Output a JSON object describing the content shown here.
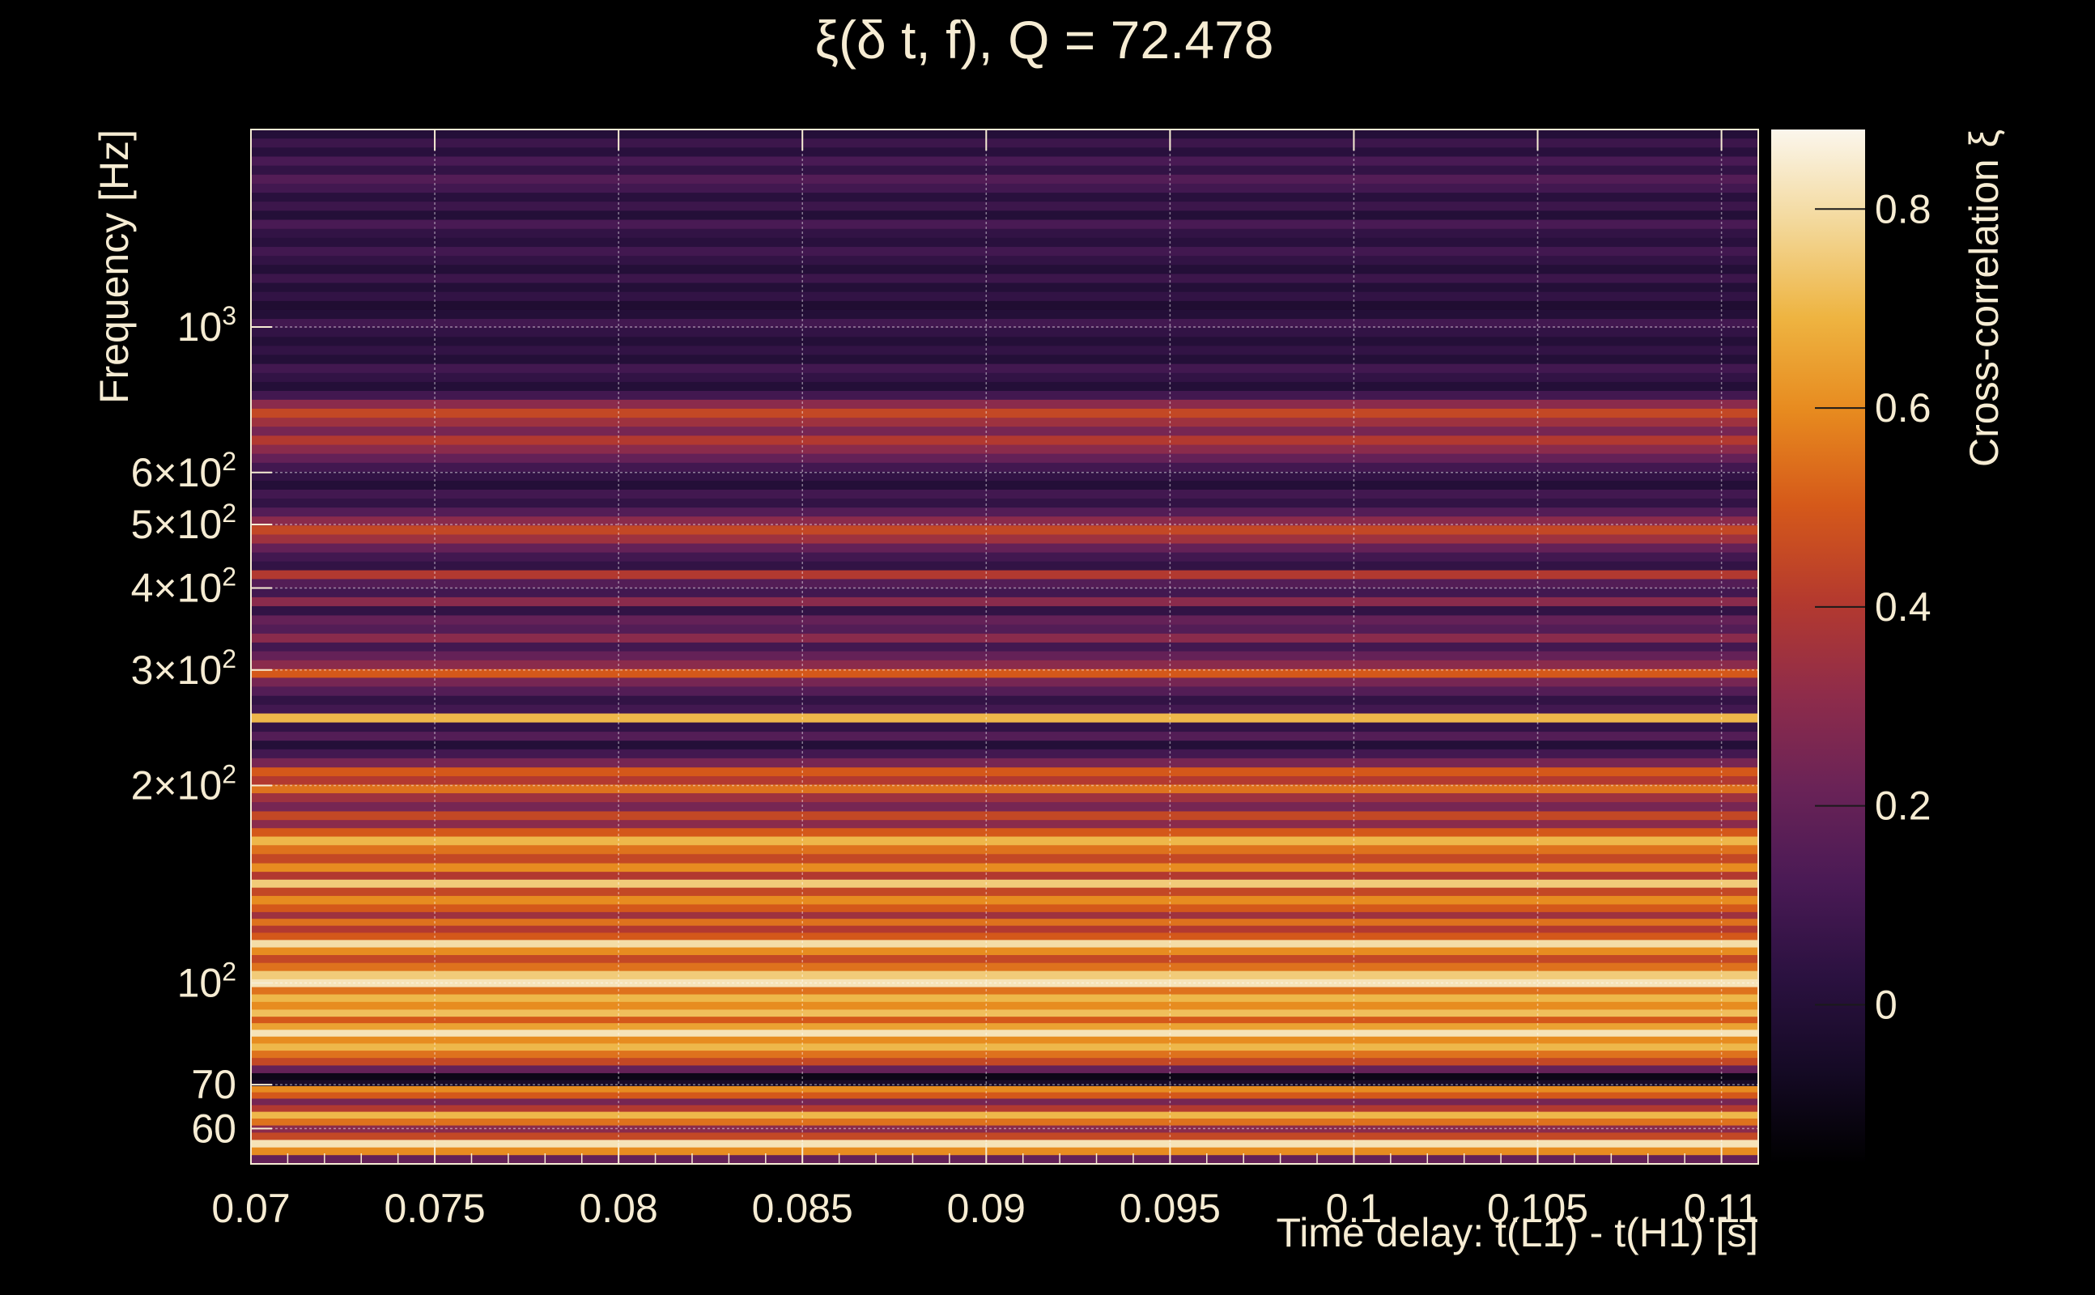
{
  "chart_data": {
    "type": "heatmap",
    "title": "ξ(δ t, f), Q = 72.478",
    "xlabel": "Time delay: t(L1) - t(H1) [s]",
    "ylabel": "Frequency [Hz]",
    "colorbar_label": "Cross-correlation ξ",
    "xlim": [
      0.07,
      0.111
    ],
    "ylim": [
      53,
      2000
    ],
    "yscale": "log",
    "x_ticks": [
      {
        "value": 0.07,
        "label": "0.07"
      },
      {
        "value": 0.075,
        "label": "0.075"
      },
      {
        "value": 0.08,
        "label": "0.08"
      },
      {
        "value": 0.085,
        "label": "0.085"
      },
      {
        "value": 0.09,
        "label": "0.09"
      },
      {
        "value": 0.095,
        "label": "0.095"
      },
      {
        "value": 0.1,
        "label": "0.1"
      },
      {
        "value": 0.105,
        "label": "0.105"
      },
      {
        "value": 0.11,
        "label": "0.11"
      }
    ],
    "y_ticks": [
      {
        "value": 60,
        "label": "60"
      },
      {
        "value": 70,
        "label": "70"
      },
      {
        "value": 100,
        "mantissa": "10",
        "exponent": "2"
      },
      {
        "value": 200,
        "mantissa": "2×10",
        "exponent": "2"
      },
      {
        "value": 300,
        "mantissa": "3×10",
        "exponent": "2"
      },
      {
        "value": 400,
        "mantissa": "4×10",
        "exponent": "2"
      },
      {
        "value": 500,
        "mantissa": "5×10",
        "exponent": "2"
      },
      {
        "value": 600,
        "mantissa": "6×10",
        "exponent": "2"
      },
      {
        "value": 1000,
        "mantissa": "10",
        "exponent": "3"
      }
    ],
    "colorbar": {
      "range": [
        -0.16,
        0.88
      ],
      "ticks": [
        {
          "value": 0,
          "label": "0"
        },
        {
          "value": 0.2,
          "label": "0.2"
        },
        {
          "value": 0.4,
          "label": "0.4"
        },
        {
          "value": 0.6,
          "label": "0.6"
        },
        {
          "value": 0.8,
          "label": "0.8"
        }
      ],
      "colormap": [
        "#000004",
        "#1b0c41",
        "#4a0c6b",
        "#781c6d",
        "#a52c60",
        "#cf4446",
        "#ed6925",
        "#fb9b06",
        "#f7d13d",
        "#fcffa4"
      ],
      "display_colormap": [
        "#000000",
        "#150a25",
        "#2b1140",
        "#4a1a55",
        "#6a2357",
        "#8f2c4a",
        "#b53a2e",
        "#d5591a",
        "#e78a1f",
        "#eeb441",
        "#f3d89a",
        "#fbf6ec"
      ]
    },
    "rows": [
      {
        "f": 54,
        "v": 0.2
      },
      {
        "f": 55.5,
        "v": 0.6
      },
      {
        "f": 57,
        "v": 0.82
      },
      {
        "f": 58.5,
        "v": 0.45
      },
      {
        "f": 60,
        "v": 0.3
      },
      {
        "f": 61.5,
        "v": 0.55
      },
      {
        "f": 63,
        "v": 0.7
      },
      {
        "f": 64.5,
        "v": 0.4
      },
      {
        "f": 66,
        "v": 0.25
      },
      {
        "f": 67.5,
        "v": 0.5
      },
      {
        "f": 69,
        "v": 0.6
      },
      {
        "f": 70.5,
        "v": -0.05
      },
      {
        "f": 72,
        "v": -0.1
      },
      {
        "f": 74,
        "v": 0.2
      },
      {
        "f": 76,
        "v": 0.45
      },
      {
        "f": 78,
        "v": 0.55
      },
      {
        "f": 80,
        "v": 0.7
      },
      {
        "f": 82,
        "v": 0.6
      },
      {
        "f": 84,
        "v": 0.82
      },
      {
        "f": 86,
        "v": 0.65
      },
      {
        "f": 88,
        "v": 0.5
      },
      {
        "f": 90,
        "v": 0.72
      },
      {
        "f": 92.5,
        "v": 0.6
      },
      {
        "f": 95,
        "v": 0.7
      },
      {
        "f": 97.5,
        "v": 0.55
      },
      {
        "f": 100,
        "v": 0.82
      },
      {
        "f": 103,
        "v": 0.75
      },
      {
        "f": 106,
        "v": 0.55
      },
      {
        "f": 109,
        "v": 0.45
      },
      {
        "f": 112,
        "v": 0.6
      },
      {
        "f": 115,
        "v": 0.8
      },
      {
        "f": 118,
        "v": 0.5
      },
      {
        "f": 121,
        "v": 0.4
      },
      {
        "f": 124,
        "v": 0.55
      },
      {
        "f": 127,
        "v": 0.35
      },
      {
        "f": 130,
        "v": 0.5
      },
      {
        "f": 134,
        "v": 0.6
      },
      {
        "f": 138,
        "v": 0.45
      },
      {
        "f": 142,
        "v": 0.75
      },
      {
        "f": 146,
        "v": 0.4
      },
      {
        "f": 150,
        "v": 0.6
      },
      {
        "f": 155,
        "v": 0.45
      },
      {
        "f": 160,
        "v": 0.55
      },
      {
        "f": 165,
        "v": 0.7
      },
      {
        "f": 170,
        "v": 0.5
      },
      {
        "f": 175,
        "v": 0.3
      },
      {
        "f": 180,
        "v": 0.45
      },
      {
        "f": 186,
        "v": 0.25
      },
      {
        "f": 192,
        "v": 0.35
      },
      {
        "f": 198,
        "v": 0.55
      },
      {
        "f": 204,
        "v": 0.4
      },
      {
        "f": 210,
        "v": 0.5
      },
      {
        "f": 217,
        "v": 0.25
      },
      {
        "f": 224,
        "v": 0.1
      },
      {
        "f": 231,
        "v": 0.0
      },
      {
        "f": 238,
        "v": 0.15
      },
      {
        "f": 246,
        "v": 0.05
      },
      {
        "f": 254,
        "v": 0.7
      },
      {
        "f": 262,
        "v": 0.1
      },
      {
        "f": 270,
        "v": 0.05
      },
      {
        "f": 279,
        "v": 0.15
      },
      {
        "f": 288,
        "v": 0.25
      },
      {
        "f": 297,
        "v": 0.5
      },
      {
        "f": 306,
        "v": 0.3
      },
      {
        "f": 316,
        "v": 0.2
      },
      {
        "f": 326,
        "v": 0.1
      },
      {
        "f": 336,
        "v": 0.3
      },
      {
        "f": 347,
        "v": 0.15
      },
      {
        "f": 358,
        "v": 0.2
      },
      {
        "f": 370,
        "v": 0.05
      },
      {
        "f": 382,
        "v": 0.3
      },
      {
        "f": 394,
        "v": 0.1
      },
      {
        "f": 407,
        "v": 0.15
      },
      {
        "f": 420,
        "v": 0.4
      },
      {
        "f": 433,
        "v": 0.05
      },
      {
        "f": 447,
        "v": 0.1
      },
      {
        "f": 461,
        "v": 0.2
      },
      {
        "f": 476,
        "v": 0.35
      },
      {
        "f": 491,
        "v": 0.45
      },
      {
        "f": 507,
        "v": 0.3
      },
      {
        "f": 523,
        "v": 0.15
      },
      {
        "f": 540,
        "v": 0.05
      },
      {
        "f": 557,
        "v": 0.1
      },
      {
        "f": 575,
        "v": 0.0
      },
      {
        "f": 593,
        "v": 0.05
      },
      {
        "f": 612,
        "v": 0.1
      },
      {
        "f": 632,
        "v": 0.2
      },
      {
        "f": 652,
        "v": 0.3
      },
      {
        "f": 673,
        "v": 0.4
      },
      {
        "f": 695,
        "v": 0.25
      },
      {
        "f": 717,
        "v": 0.35
      },
      {
        "f": 740,
        "v": 0.45
      },
      {
        "f": 764,
        "v": 0.3
      },
      {
        "f": 788,
        "v": 0.1
      },
      {
        "f": 813,
        "v": 0.0
      },
      {
        "f": 839,
        "v": 0.05
      },
      {
        "f": 866,
        "v": 0.1
      },
      {
        "f": 894,
        "v": 0.0
      },
      {
        "f": 923,
        "v": 0.05
      },
      {
        "f": 952,
        "v": 0.0
      },
      {
        "f": 983,
        "v": 0.05
      },
      {
        "f": 1014,
        "v": 0.1
      },
      {
        "f": 1047,
        "v": 0.0
      },
      {
        "f": 1080,
        "v": -0.02
      },
      {
        "f": 1115,
        "v": 0.05
      },
      {
        "f": 1151,
        "v": 0.0
      },
      {
        "f": 1188,
        "v": 0.08
      },
      {
        "f": 1226,
        "v": 0.0
      },
      {
        "f": 1266,
        "v": 0.05
      },
      {
        "f": 1306,
        "v": 0.1
      },
      {
        "f": 1348,
        "v": 0.02
      },
      {
        "f": 1392,
        "v": 0.05
      },
      {
        "f": 1436,
        "v": 0.12
      },
      {
        "f": 1483,
        "v": 0.0
      },
      {
        "f": 1530,
        "v": 0.08
      },
      {
        "f": 1580,
        "v": 0.02
      },
      {
        "f": 1630,
        "v": 0.1
      },
      {
        "f": 1683,
        "v": 0.15
      },
      {
        "f": 1737,
        "v": 0.05
      },
      {
        "f": 1793,
        "v": 0.12
      },
      {
        "f": 1851,
        "v": 0.02
      },
      {
        "f": 1910,
        "v": 0.08
      },
      {
        "f": 1972,
        "v": 0.0
      }
    ]
  }
}
